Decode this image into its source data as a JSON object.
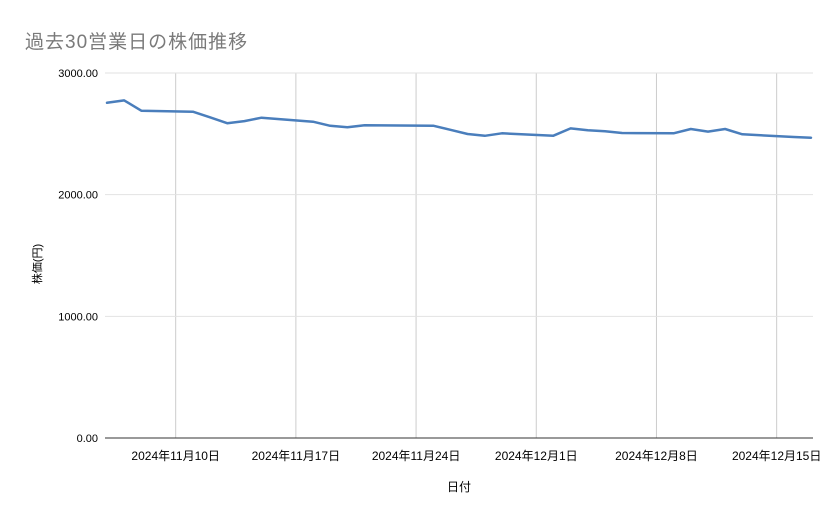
{
  "chart_data": {
    "type": "line",
    "title": "過去30営業日の株価推移",
    "xlabel": "日付",
    "ylabel": "株価(円)",
    "ylim": [
      0,
      3000
    ],
    "x_range": [
      "2024-11-06",
      "2024-12-17"
    ],
    "grid": true,
    "legend": false,
    "line_color": "#4a7ebc",
    "y_ticks": [
      {
        "label": "3000.00",
        "value": 3000
      },
      {
        "label": "2000.00",
        "value": 2000
      },
      {
        "label": "1000.00",
        "value": 1000
      },
      {
        "label": "0.00",
        "value": 0
      }
    ],
    "x_ticks": [
      {
        "label": "2024年11月10日",
        "date": "2024-11-10"
      },
      {
        "label": "2024年11月17日",
        "date": "2024-11-17"
      },
      {
        "label": "2024年11月24日",
        "date": "2024-11-24"
      },
      {
        "label": "2024年12月1日",
        "date": "2024-12-01"
      },
      {
        "label": "2024年12月8日",
        "date": "2024-12-08"
      },
      {
        "label": "2024年12月15日",
        "date": "2024-12-15"
      }
    ],
    "x": [
      "2024-11-06",
      "2024-11-07",
      "2024-11-08",
      "2024-11-11",
      "2024-11-12",
      "2024-11-13",
      "2024-11-14",
      "2024-11-15",
      "2024-11-18",
      "2024-11-19",
      "2024-11-20",
      "2024-11-21",
      "2024-11-22",
      "2024-11-25",
      "2024-11-26",
      "2024-11-27",
      "2024-11-28",
      "2024-11-29",
      "2024-12-02",
      "2024-12-03",
      "2024-12-04",
      "2024-12-05",
      "2024-12-06",
      "2024-12-09",
      "2024-12-10",
      "2024-12-11",
      "2024-12-12",
      "2024-12-13",
      "2024-12-16",
      "2024-12-17"
    ],
    "values": [
      2755,
      2775,
      2690,
      2682,
      2636,
      2587,
      2605,
      2633,
      2600,
      2566,
      2554,
      2570,
      2569,
      2567,
      2533,
      2499,
      2484,
      2504,
      2485,
      2545,
      2529,
      2521,
      2507,
      2504,
      2540,
      2518,
      2540,
      2496,
      2474,
      2468
    ]
  },
  "colors": {
    "series_line": "#4a7ebc",
    "title_text": "#7a7a7a",
    "h_gridline": "#e2e2e2",
    "v_gridline": "#cccccc",
    "axis_baseline": "#333333",
    "tick_text": "#000000"
  }
}
